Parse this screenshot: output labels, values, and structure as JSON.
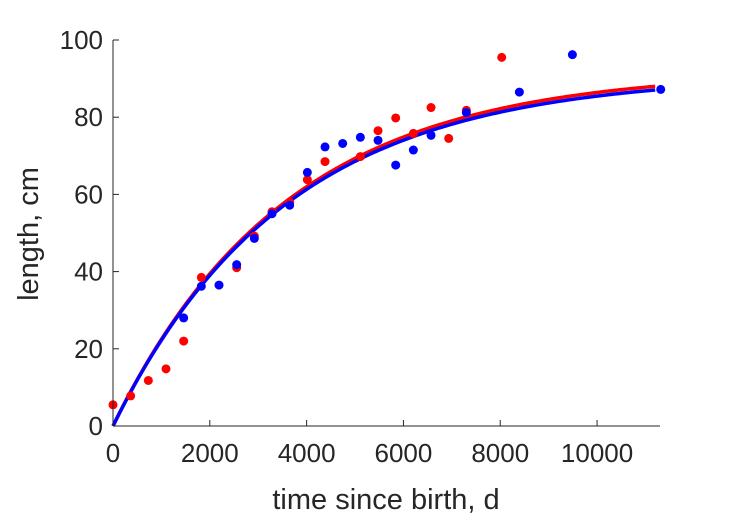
{
  "chart_data": {
    "type": "scatter",
    "title": "",
    "xlabel": "time since birth, d",
    "ylabel": "length, cm",
    "xlim": [
      0,
      11300
    ],
    "ylim": [
      0,
      100
    ],
    "xticks": [
      0,
      2000,
      4000,
      6000,
      8000,
      10000
    ],
    "yticks": [
      0,
      20,
      40,
      60,
      80,
      100
    ],
    "grid": false,
    "series": [
      {
        "color": "#ff0000",
        "points": [
          [
            0,
            5.5
          ],
          [
            365,
            7.8
          ],
          [
            730,
            11.8
          ],
          [
            1095,
            14.8
          ],
          [
            1460,
            22
          ],
          [
            1825,
            38.5
          ],
          [
            2555,
            41
          ],
          [
            2920,
            49.2
          ],
          [
            3285,
            55.5
          ],
          [
            3650,
            58
          ],
          [
            4015,
            63.8
          ],
          [
            4380,
            68.5
          ],
          [
            5110,
            69.8
          ],
          [
            5475,
            76.5
          ],
          [
            5840,
            79.8
          ],
          [
            6205,
            75.8
          ],
          [
            6570,
            82.5
          ],
          [
            6935,
            74.5
          ],
          [
            7300,
            81.8
          ],
          [
            8030,
            95.5
          ]
        ],
        "fit": {
          "Linf": 92,
          "k": 0.00028,
          "L0": 0
        }
      },
      {
        "color": "#0000ff",
        "points": [
          [
            1460,
            28
          ],
          [
            1825,
            36.2
          ],
          [
            2190,
            36.5
          ],
          [
            2555,
            41.8
          ],
          [
            2920,
            48.6
          ],
          [
            3285,
            55
          ],
          [
            3650,
            57.2
          ],
          [
            4015,
            65.7
          ],
          [
            4380,
            72.3
          ],
          [
            4745,
            73.2
          ],
          [
            5110,
            74.8
          ],
          [
            5475,
            74
          ],
          [
            5840,
            67.6
          ],
          [
            6205,
            71.5
          ],
          [
            6570,
            75.3
          ],
          [
            7300,
            81.2
          ],
          [
            8395,
            86.5
          ],
          [
            9490,
            96.2
          ],
          [
            11315,
            87.2
          ]
        ],
        "fit": {
          "Linf": 91,
          "k": 0.00028,
          "L0": 0
        }
      }
    ]
  }
}
